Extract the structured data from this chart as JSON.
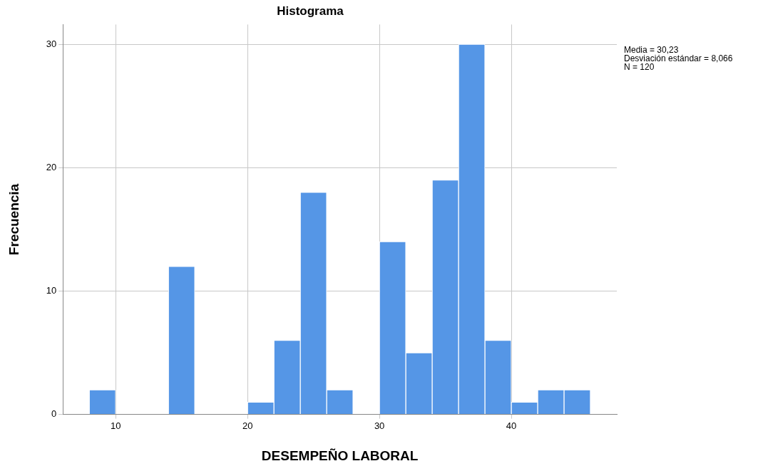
{
  "chart_data": {
    "type": "histogram",
    "title": "Histograma",
    "xlabel": "DESEMPEÑO LABORAL",
    "ylabel": "Frecuencia",
    "bins": [
      8,
      10,
      12,
      14,
      16,
      18,
      20,
      22,
      24,
      26,
      28,
      30,
      32,
      34,
      36,
      38,
      40,
      42,
      44,
      46
    ],
    "values": [
      2,
      0,
      0,
      12,
      0,
      0,
      1,
      6,
      18,
      2,
      0,
      14,
      5,
      19,
      30,
      6,
      1,
      2,
      2
    ],
    "color": "#5596e6",
    "xlim": [
      6,
      48
    ],
    "xticks": [
      10,
      20,
      30,
      40
    ],
    "ylim": [
      0,
      31.6
    ],
    "yticks": [
      0,
      10,
      20,
      30
    ],
    "grid": true,
    "annotations": [
      "Media = 30,23",
      "Desviación estándar = 8,066",
      "N = 120"
    ]
  }
}
